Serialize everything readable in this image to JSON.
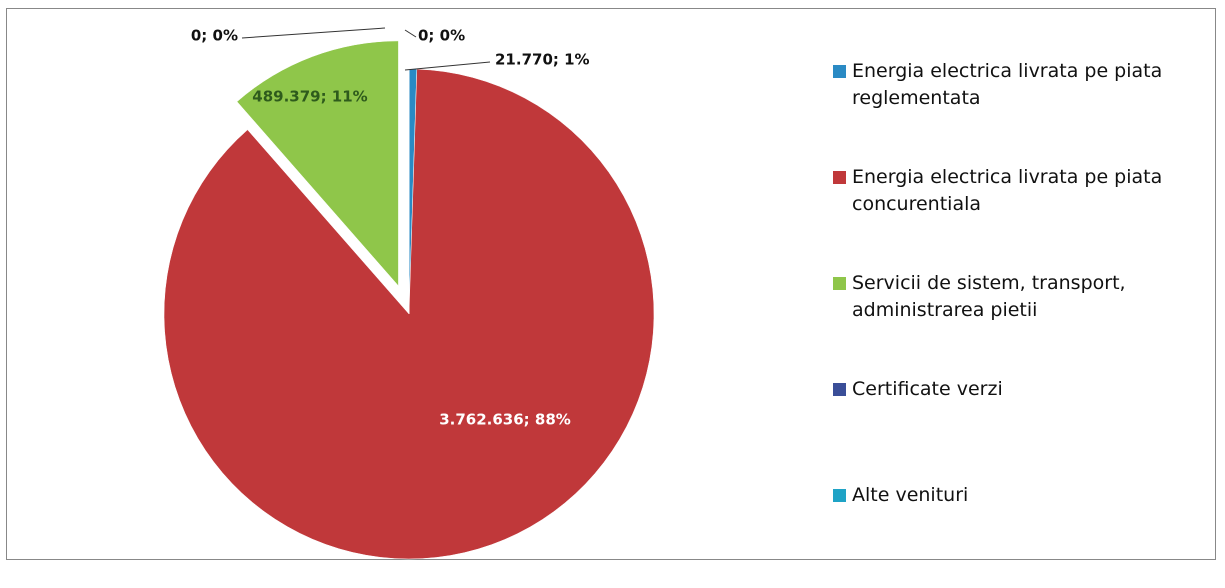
{
  "chart_data": {
    "type": "pie",
    "categories": [
      "Energia electrica livrata pe piata reglementata",
      "Energia electrica livrata pe piata concurentiala",
      "Servicii de sistem, transport, administrarea pietii",
      "Certificate verzi",
      "Alte venituri"
    ],
    "values": [
      21770,
      3762636,
      489379,
      0,
      0
    ],
    "value_labels": [
      "21.770; 1%",
      "3.762.636; 88%",
      "489.379; 11%",
      "0; 0%",
      "0; 0%"
    ],
    "colors": [
      "#2a8ac4",
      "#c0383a",
      "#8fc64a",
      "#3a4e98",
      "#1fa3c6"
    ],
    "exploded": [
      2
    ],
    "legend": "right"
  }
}
